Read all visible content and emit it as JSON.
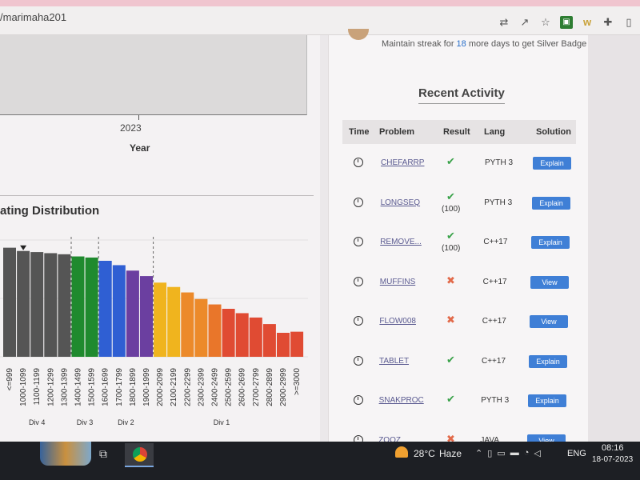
{
  "browser": {
    "url": "/marimaha201",
    "icons": [
      "translate-icon",
      "share-icon",
      "star-icon",
      "extension-green-icon",
      "extension-w-icon",
      "puzzle-icon",
      "sidebar-icon"
    ]
  },
  "year_chart": {
    "tick_label": "2023",
    "axis_title": "Year"
  },
  "rating_distribution": {
    "title": "ating Distribution",
    "chart_data": {
      "type": "bar",
      "categories": [
        "<=999",
        "1000-1099",
        "1100-1199",
        "1200-1299",
        "1300-1399",
        "1400-1499",
        "1500-1599",
        "1600-1699",
        "1700-1799",
        "1800-1899",
        "1900-1999",
        "2000-2099",
        "2100-2199",
        "2200-2299",
        "2300-2399",
        "2400-2499",
        "2500-2599",
        "2600-2699",
        "2700-2799",
        "2800-2899",
        "2900-2999",
        ">=3000"
      ],
      "values": [
        100,
        97,
        96,
        95,
        94,
        92,
        91,
        88,
        84,
        79,
        74,
        68,
        64,
        59,
        53,
        48,
        44,
        40,
        36,
        30,
        22,
        23
      ],
      "colors": [
        "#555555",
        "#555555",
        "#555555",
        "#555555",
        "#555555",
        "#1f8a2e",
        "#1f8a2e",
        "#2f5fd3",
        "#2f5fd3",
        "#6b3fa0",
        "#6b3fa0",
        "#f0b41e",
        "#f0b41e",
        "#ec8a2a",
        "#ec8a2a",
        "#e9762a",
        "#e04b33",
        "#e04b33",
        "#e04b33",
        "#e04b33",
        "#e04b33",
        "#e04b33"
      ],
      "marker_index": 1,
      "divisions": [
        {
          "label": "Div 4",
          "center_index": 2
        },
        {
          "label": "Div 3",
          "center_index": 5.5
        },
        {
          "label": "Div 2",
          "center_index": 8.5
        },
        {
          "label": "Div 1",
          "center_index": 15.5
        }
      ],
      "dashed_after_index": [
        4,
        6,
        10
      ],
      "ylim": [
        0,
        110
      ],
      "title": "ating Distribution",
      "xlabel": "",
      "ylabel": ""
    }
  },
  "streak": {
    "prefix": "Maintain streak for ",
    "days": "18",
    "suffix": " more days to get Silver Badge"
  },
  "recent_activity": {
    "title": "Recent Activity",
    "headers": {
      "time": "Time",
      "problem": "Problem",
      "result": "Result",
      "lang": "Lang",
      "solution": "Solution"
    },
    "rows": [
      {
        "problem": "CHEFARRP",
        "result": "ok",
        "score": "",
        "lang": "PYTH 3",
        "solution": "Explain"
      },
      {
        "problem": "LONGSEQ",
        "result": "ok",
        "score": "(100)",
        "lang": "PYTH 3",
        "solution": "Explain"
      },
      {
        "problem": "REMOVE...",
        "result": "ok",
        "score": "(100)",
        "lang": "C++17",
        "solution": "Explain"
      },
      {
        "problem": "MUFFINS",
        "result": "bad",
        "score": "",
        "lang": "C++17",
        "solution": "View"
      },
      {
        "problem": "FLOW008",
        "result": "bad",
        "score": "",
        "lang": "C++17",
        "solution": "View"
      },
      {
        "problem": "TABLET",
        "result": "ok",
        "score": "",
        "lang": "C++17",
        "solution": "Explain"
      },
      {
        "problem": "SNAKPROC",
        "result": "ok",
        "score": "",
        "lang": "PYTH 3",
        "solution": "Explain"
      },
      {
        "problem": "ZOOZ",
        "result": "bad",
        "score": "",
        "lang": "JAVA",
        "solution": "View"
      }
    ]
  },
  "taskbar": {
    "temp": "28°C",
    "weather": "Haze",
    "lang": "ENG",
    "time": "08:16",
    "date": "18-07-2023"
  }
}
